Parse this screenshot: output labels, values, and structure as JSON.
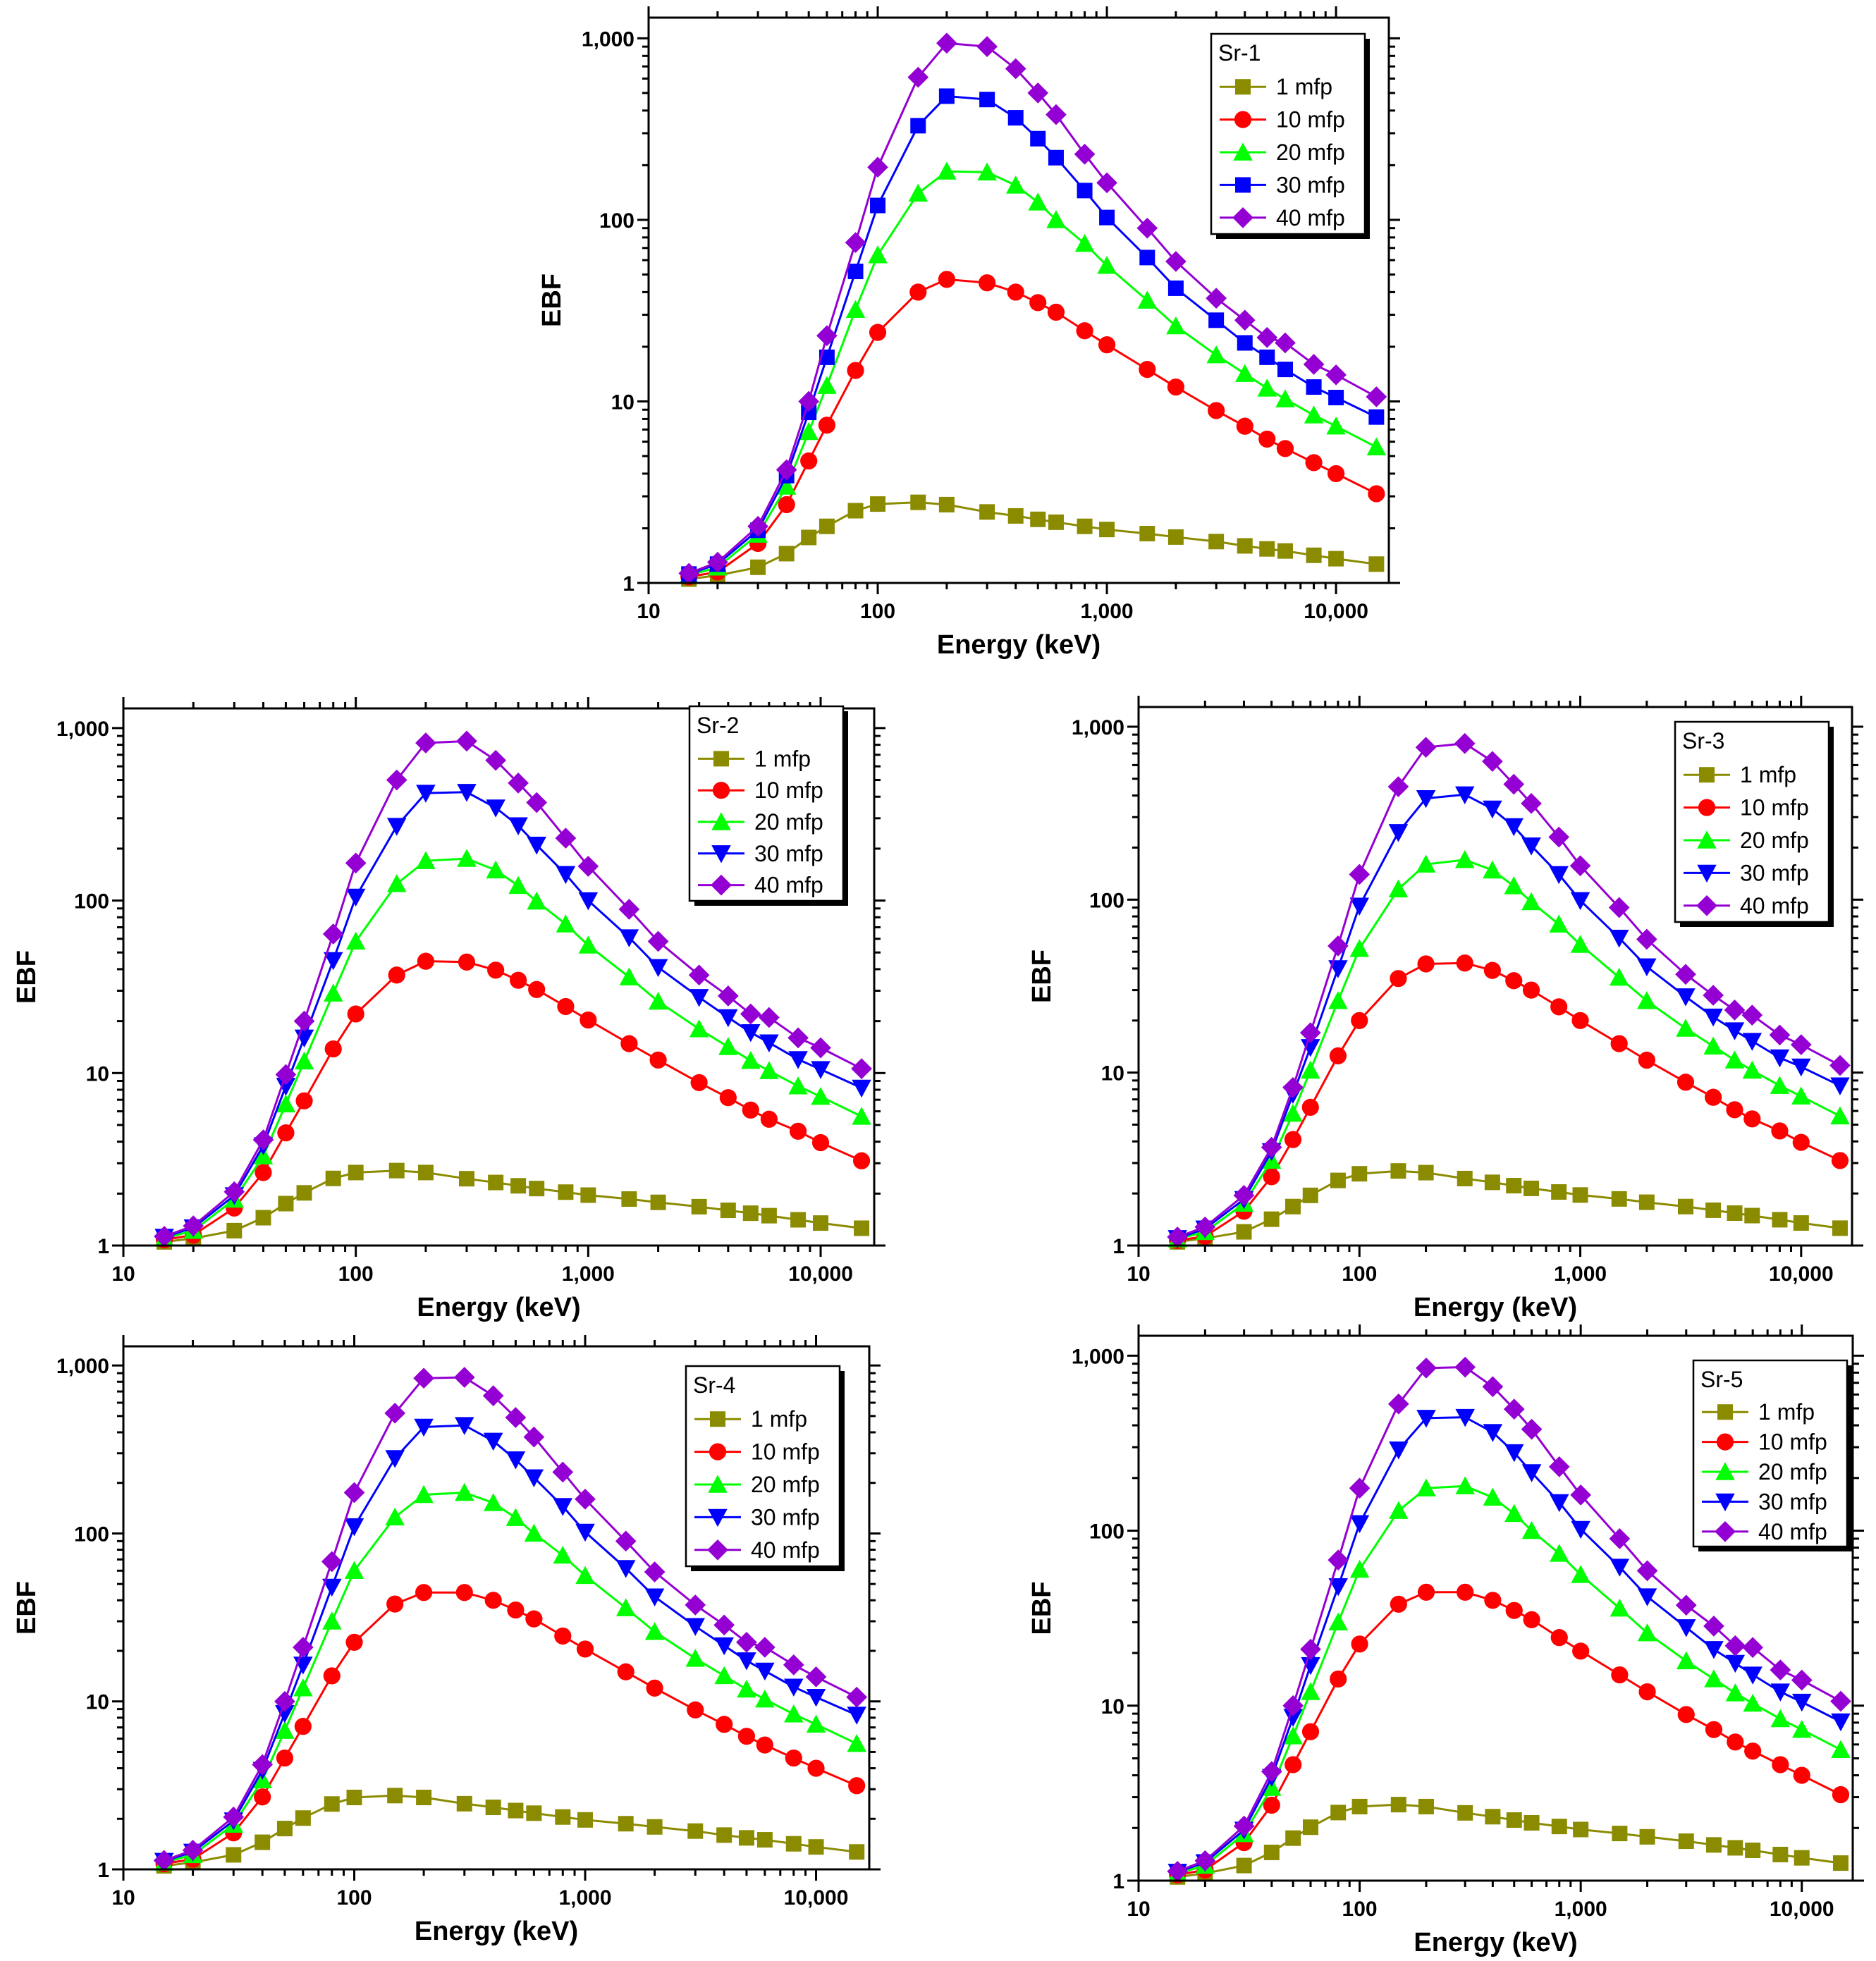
{
  "chart_data": [
    {
      "type": "line",
      "title": "Sr-1",
      "xscale": "log",
      "yscale": "log",
      "xlabel": "Energy (keV)",
      "ylabel": "EBF",
      "xlim": [
        10,
        17000
      ],
      "ylim": [
        1,
        1300
      ],
      "xticks": [
        10,
        100,
        1000,
        10000
      ],
      "xtick_labels": [
        "10",
        "100",
        "1,000",
        "10,000"
      ],
      "yticks": [
        1,
        10,
        100,
        1000
      ],
      "ytick_labels": [
        "1",
        "10",
        "100",
        "1,000"
      ],
      "legend_position": "top-right",
      "x": [
        15,
        20,
        30,
        40,
        50,
        60,
        80,
        100,
        150,
        200,
        300,
        400,
        500,
        600,
        800,
        1000,
        1500,
        2000,
        3000,
        4000,
        5000,
        6000,
        8000,
        10000,
        15000
      ],
      "series": [
        {
          "name": "1 mfp",
          "color": "#8b8b00",
          "marker": "square",
          "values": [
            1.05,
            1.1,
            1.22,
            1.45,
            1.78,
            2.05,
            2.5,
            2.72,
            2.78,
            2.7,
            2.46,
            2.34,
            2.24,
            2.16,
            2.05,
            1.97,
            1.87,
            1.79,
            1.69,
            1.6,
            1.54,
            1.5,
            1.42,
            1.36,
            1.27
          ]
        },
        {
          "name": "10 mfp",
          "color": "#ff0000",
          "marker": "circle",
          "values": [
            1.08,
            1.15,
            1.65,
            2.7,
            4.7,
            7.4,
            14.8,
            24,
            40,
            47,
            45,
            40,
            35,
            31,
            24.5,
            20.5,
            15,
            12,
            8.9,
            7.3,
            6.2,
            5.5,
            4.6,
            4.0,
            3.1
          ]
        },
        {
          "name": "20 mfp",
          "color": "#00ff00",
          "marker": "triangle-up",
          "values": [
            1.1,
            1.22,
            1.85,
            3.4,
            6.8,
            12.2,
            32,
            64,
            140,
            185,
            183,
            155,
            125,
            100,
            74,
            56,
            36,
            26,
            18,
            14.2,
            11.8,
            10.3,
            8.4,
            7.3,
            5.6
          ]
        },
        {
          "name": "30 mfp",
          "color": "#0000ff",
          "marker": "square",
          "values": [
            1.12,
            1.27,
            1.95,
            3.9,
            8.7,
            17.5,
            52,
            120,
            330,
            480,
            460,
            365,
            280,
            220,
            145,
            103,
            62,
            42,
            28,
            21,
            17.5,
            15,
            12,
            10.5,
            8.2
          ]
        },
        {
          "name": "40 mfp",
          "color": "#9400d3",
          "marker": "diamond",
          "values": [
            1.13,
            1.3,
            2.05,
            4.2,
            10,
            23,
            75,
            195,
            610,
            940,
            900,
            680,
            500,
            380,
            230,
            160,
            90,
            59,
            37,
            28,
            22.5,
            21,
            16,
            14,
            10.6
          ]
        }
      ]
    },
    {
      "type": "line",
      "title": "Sr-2",
      "xscale": "log",
      "yscale": "log",
      "xlabel": "Energy (keV)",
      "ylabel": "EBF",
      "xlim": [
        10,
        17000
      ],
      "ylim": [
        1,
        1300
      ],
      "xticks": [
        10,
        100,
        1000,
        10000
      ],
      "xtick_labels": [
        "10",
        "100",
        "1,000",
        "10,000"
      ],
      "yticks": [
        1,
        10,
        100,
        1000
      ],
      "ytick_labels": [
        "1",
        "10",
        "100",
        "1,000"
      ],
      "legend_position": "top-right",
      "x": [
        15,
        20,
        30,
        40,
        50,
        60,
        80,
        100,
        150,
        200,
        300,
        400,
        500,
        600,
        800,
        1000,
        1500,
        2000,
        3000,
        4000,
        5000,
        6000,
        8000,
        10000,
        15000
      ],
      "series": [
        {
          "name": "1 mfp",
          "color": "#8b8b00",
          "marker": "square",
          "values": [
            1.05,
            1.1,
            1.22,
            1.45,
            1.75,
            2.02,
            2.45,
            2.65,
            2.72,
            2.65,
            2.44,
            2.32,
            2.22,
            2.14,
            2.04,
            1.96,
            1.86,
            1.78,
            1.68,
            1.6,
            1.54,
            1.49,
            1.41,
            1.35,
            1.26
          ]
        },
        {
          "name": "10 mfp",
          "color": "#ff0000",
          "marker": "circle",
          "values": [
            1.08,
            1.15,
            1.65,
            2.65,
            4.5,
            6.9,
            13.8,
            22,
            37,
            44.5,
            44,
            39.5,
            34.5,
            30.5,
            24.3,
            20.3,
            14.8,
            11.9,
            8.8,
            7.2,
            6.1,
            5.4,
            4.6,
            3.95,
            3.1
          ]
        },
        {
          "name": "20 mfp",
          "color": "#00ff00",
          "marker": "triangle-up",
          "values": [
            1.1,
            1.22,
            1.85,
            3.3,
            6.6,
            11.7,
            29,
            58,
            125,
            170,
            175,
            150,
            122,
            99,
            73,
            55,
            36,
            26,
            18,
            14.2,
            11.8,
            10.3,
            8.4,
            7.3,
            5.6
          ]
        },
        {
          "name": "30 mfp",
          "color": "#0000ff",
          "marker": "triangle-down",
          "values": [
            1.12,
            1.27,
            1.95,
            3.8,
            8.4,
            16,
            45,
            105,
            270,
            420,
            425,
            345,
            272,
            210,
            142,
            100,
            61,
            41,
            27.5,
            21,
            17.2,
            15,
            12,
            10.5,
            8.2
          ]
        },
        {
          "name": "40 mfp",
          "color": "#9400d3",
          "marker": "diamond",
          "values": [
            1.13,
            1.3,
            2.05,
            4.1,
            9.8,
            20,
            64,
            165,
            500,
            820,
            840,
            650,
            480,
            370,
            230,
            158,
            89,
            58,
            37,
            28,
            22,
            21,
            16,
            14,
            10.6
          ]
        }
      ]
    },
    {
      "type": "line",
      "title": "Sr-3",
      "xscale": "log",
      "yscale": "log",
      "xlabel": "Energy (keV)",
      "ylabel": "EBF",
      "xlim": [
        10,
        17000
      ],
      "ylim": [
        1,
        1300
      ],
      "xticks": [
        10,
        100,
        1000,
        10000
      ],
      "xtick_labels": [
        "10",
        "100",
        "1,000",
        "10,000"
      ],
      "yticks": [
        1,
        10,
        100,
        1000
      ],
      "ytick_labels": [
        "1",
        "10",
        "100",
        "1,000"
      ],
      "legend_position": "top-right",
      "x": [
        15,
        20,
        30,
        40,
        50,
        60,
        80,
        100,
        150,
        200,
        300,
        400,
        500,
        600,
        800,
        1000,
        1500,
        2000,
        3000,
        4000,
        5000,
        6000,
        8000,
        10000,
        15000
      ],
      "series": [
        {
          "name": "1 mfp",
          "color": "#8b8b00",
          "marker": "square",
          "values": [
            1.05,
            1.1,
            1.2,
            1.42,
            1.68,
            1.95,
            2.38,
            2.6,
            2.7,
            2.64,
            2.44,
            2.32,
            2.22,
            2.14,
            2.04,
            1.96,
            1.86,
            1.78,
            1.68,
            1.6,
            1.54,
            1.49,
            1.41,
            1.35,
            1.26
          ]
        },
        {
          "name": "10 mfp",
          "color": "#ff0000",
          "marker": "circle",
          "values": [
            1.07,
            1.13,
            1.58,
            2.5,
            4.1,
            6.3,
            12.5,
            20,
            35,
            42.5,
            43,
            39,
            34,
            30,
            24,
            20,
            14.7,
            11.8,
            8.8,
            7.2,
            6.1,
            5.4,
            4.6,
            3.95,
            3.1
          ]
        },
        {
          "name": "20 mfp",
          "color": "#00ff00",
          "marker": "triangle-up",
          "values": [
            1.09,
            1.2,
            1.75,
            3.1,
            5.8,
            10.3,
            26,
            52,
            115,
            160,
            170,
            148,
            120,
            97,
            72,
            55,
            35.5,
            26,
            18,
            14.2,
            11.8,
            10.3,
            8.4,
            7.3,
            5.6
          ]
        },
        {
          "name": "30 mfp",
          "color": "#0000ff",
          "marker": "triangle-down",
          "values": [
            1.1,
            1.25,
            1.85,
            3.5,
            7.5,
            14,
            40,
            92,
            245,
            385,
            405,
            335,
            265,
            205,
            140,
            99,
            60,
            41,
            27.5,
            21,
            17.5,
            15.2,
            12.2,
            10.8,
            8.4
          ]
        },
        {
          "name": "40 mfp",
          "color": "#9400d3",
          "marker": "diamond",
          "values": [
            1.12,
            1.28,
            1.95,
            3.7,
            8.2,
            17,
            54,
            140,
            450,
            760,
            800,
            630,
            465,
            360,
            230,
            157,
            90,
            59,
            37,
            28,
            23,
            21.5,
            16.5,
            14.5,
            11
          ]
        }
      ]
    },
    {
      "type": "line",
      "title": "Sr-4",
      "xscale": "log",
      "yscale": "log",
      "xlabel": "Energy (keV)",
      "ylabel": "EBF",
      "xlim": [
        10,
        17000
      ],
      "ylim": [
        1,
        1300
      ],
      "xticks": [
        10,
        100,
        1000,
        10000
      ],
      "xtick_labels": [
        "10",
        "100",
        "1,000",
        "10,000"
      ],
      "yticks": [
        1,
        10,
        100,
        1000
      ],
      "ytick_labels": [
        "1",
        "10",
        "100",
        "1,000"
      ],
      "legend_position": "top-right",
      "x": [
        15,
        20,
        30,
        40,
        50,
        60,
        80,
        100,
        150,
        200,
        300,
        400,
        500,
        600,
        800,
        1000,
        1500,
        2000,
        3000,
        4000,
        5000,
        6000,
        8000,
        10000,
        15000
      ],
      "series": [
        {
          "name": "1 mfp",
          "color": "#8b8b00",
          "marker": "square",
          "values": [
            1.05,
            1.1,
            1.22,
            1.45,
            1.75,
            2.02,
            2.45,
            2.68,
            2.75,
            2.68,
            2.46,
            2.34,
            2.24,
            2.16,
            2.05,
            1.97,
            1.87,
            1.79,
            1.69,
            1.6,
            1.54,
            1.5,
            1.42,
            1.36,
            1.27
          ]
        },
        {
          "name": "10 mfp",
          "color": "#ff0000",
          "marker": "circle",
          "values": [
            1.08,
            1.15,
            1.65,
            2.7,
            4.6,
            7.1,
            14.2,
            22.5,
            38,
            44.5,
            44.5,
            40,
            35,
            31,
            24.5,
            20.5,
            15,
            12,
            8.9,
            7.3,
            6.2,
            5.5,
            4.6,
            4.0,
            3.15
          ]
        },
        {
          "name": "20 mfp",
          "color": "#00ff00",
          "marker": "triangle-up",
          "values": [
            1.1,
            1.22,
            1.85,
            3.4,
            6.7,
            12,
            30,
            60,
            125,
            170,
            175,
            152,
            124,
            100,
            74,
            56,
            36,
            26,
            18,
            14.2,
            11.8,
            10.3,
            8.4,
            7.3,
            5.6
          ]
        },
        {
          "name": "30 mfp",
          "color": "#0000ff",
          "marker": "triangle-down",
          "values": [
            1.12,
            1.27,
            1.95,
            3.9,
            8.5,
            16.5,
            48,
            110,
            280,
            430,
            440,
            355,
            275,
            215,
            145,
            102,
            62,
            42,
            28,
            21.5,
            17.5,
            15.2,
            12.2,
            10.6,
            8.3
          ]
        },
        {
          "name": "40 mfp",
          "color": "#9400d3",
          "marker": "diamond",
          "values": [
            1.13,
            1.3,
            2.05,
            4.2,
            10,
            21,
            68,
            175,
            520,
            840,
            850,
            660,
            490,
            375,
            232,
            160,
            90,
            59,
            37.5,
            28.5,
            22.5,
            21,
            16.5,
            14,
            10.6
          ]
        }
      ]
    },
    {
      "type": "line",
      "title": "Sr-5",
      "xscale": "log",
      "yscale": "log",
      "xlabel": "Energy (keV)",
      "ylabel": "EBF",
      "xlim": [
        10,
        17000
      ],
      "ylim": [
        1,
        1300
      ],
      "xticks": [
        10,
        100,
        1000,
        10000
      ],
      "xtick_labels": [
        "10",
        "100",
        "1,000",
        "10,000"
      ],
      "yticks": [
        1,
        10,
        100,
        1000
      ],
      "ytick_labels": [
        "1",
        "10",
        "100",
        "1,000"
      ],
      "legend_position": "top-right",
      "x": [
        15,
        20,
        30,
        40,
        50,
        60,
        80,
        100,
        150,
        200,
        300,
        400,
        500,
        600,
        800,
        1000,
        1500,
        2000,
        3000,
        4000,
        5000,
        6000,
        8000,
        10000,
        15000
      ],
      "series": [
        {
          "name": "1 mfp",
          "color": "#8b8b00",
          "marker": "square",
          "values": [
            1.05,
            1.1,
            1.22,
            1.45,
            1.75,
            2.02,
            2.45,
            2.65,
            2.72,
            2.65,
            2.44,
            2.32,
            2.22,
            2.14,
            2.04,
            1.96,
            1.86,
            1.78,
            1.68,
            1.6,
            1.54,
            1.49,
            1.41,
            1.35,
            1.26
          ]
        },
        {
          "name": "10 mfp",
          "color": "#ff0000",
          "marker": "circle",
          "values": [
            1.08,
            1.15,
            1.65,
            2.7,
            4.6,
            7.1,
            14.2,
            22.5,
            38,
            44.5,
            44.5,
            40,
            35,
            31,
            24.5,
            20.5,
            15,
            12,
            8.9,
            7.3,
            6.2,
            5.5,
            4.6,
            4.0,
            3.1
          ]
        },
        {
          "name": "20 mfp",
          "color": "#00ff00",
          "marker": "triangle-up",
          "values": [
            1.1,
            1.22,
            1.85,
            3.4,
            6.7,
            12,
            30,
            60,
            130,
            175,
            180,
            155,
            125,
            100,
            74,
            56,
            36,
            26,
            18,
            14.2,
            11.8,
            10.3,
            8.4,
            7.3,
            5.6
          ]
        },
        {
          "name": "30 mfp",
          "color": "#0000ff",
          "marker": "triangle-down",
          "values": [
            1.12,
            1.27,
            1.95,
            3.9,
            8.6,
            17,
            48,
            110,
            290,
            440,
            445,
            365,
            280,
            215,
            145,
            102,
            62,
            42,
            28,
            21,
            17.5,
            15,
            12,
            10.5,
            8.1
          ]
        },
        {
          "name": "40 mfp",
          "color": "#9400d3",
          "marker": "diamond",
          "values": [
            1.13,
            1.3,
            2.05,
            4.2,
            10,
            21,
            68,
            175,
            530,
            850,
            860,
            665,
            495,
            380,
            232,
            160,
            90,
            59,
            37.5,
            28.5,
            22,
            21.5,
            16,
            14,
            10.6
          ]
        }
      ]
    }
  ]
}
